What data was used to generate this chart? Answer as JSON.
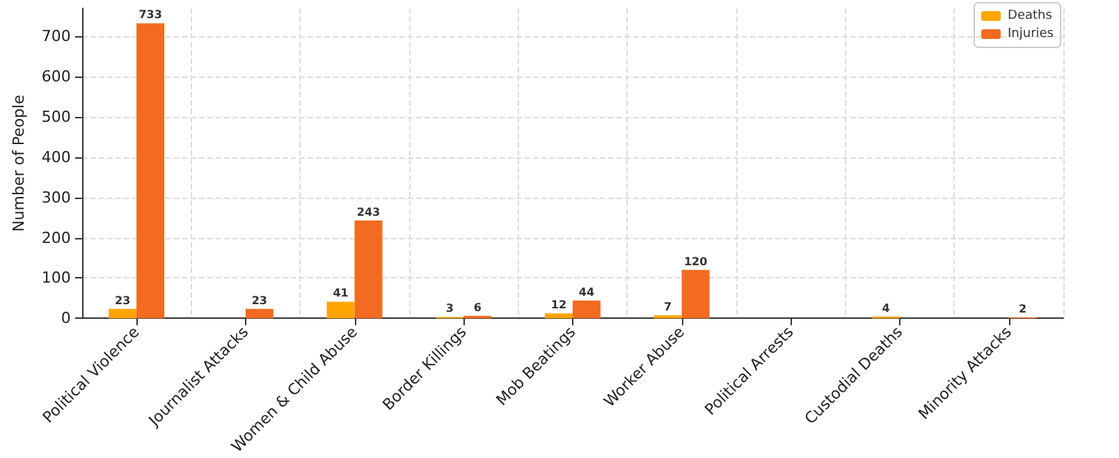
{
  "chart_data": {
    "type": "bar",
    "ylabel": "Number of People",
    "categories": [
      "Political Violence",
      "Journalist Attacks",
      "Women & Child Abuse",
      "Border Killings",
      "Mob Beatings",
      "Worker Abuse",
      "Political Arrests",
      "Custodial Deaths",
      "Minority Attacks"
    ],
    "series": [
      {
        "name": "Deaths",
        "color": "#ffa500",
        "values": [
          23,
          null,
          41,
          3,
          12,
          7,
          null,
          4,
          null
        ]
      },
      {
        "name": "Injuries",
        "color": "#f26b21",
        "values": [
          733,
          23,
          243,
          6,
          44,
          120,
          null,
          null,
          2
        ]
      }
    ],
    "ylim": [
      0,
      770
    ],
    "yticks": [
      0,
      100,
      200,
      300,
      400,
      500,
      600,
      700
    ],
    "grid": true,
    "legend": "top right",
    "data_labels": true
  }
}
